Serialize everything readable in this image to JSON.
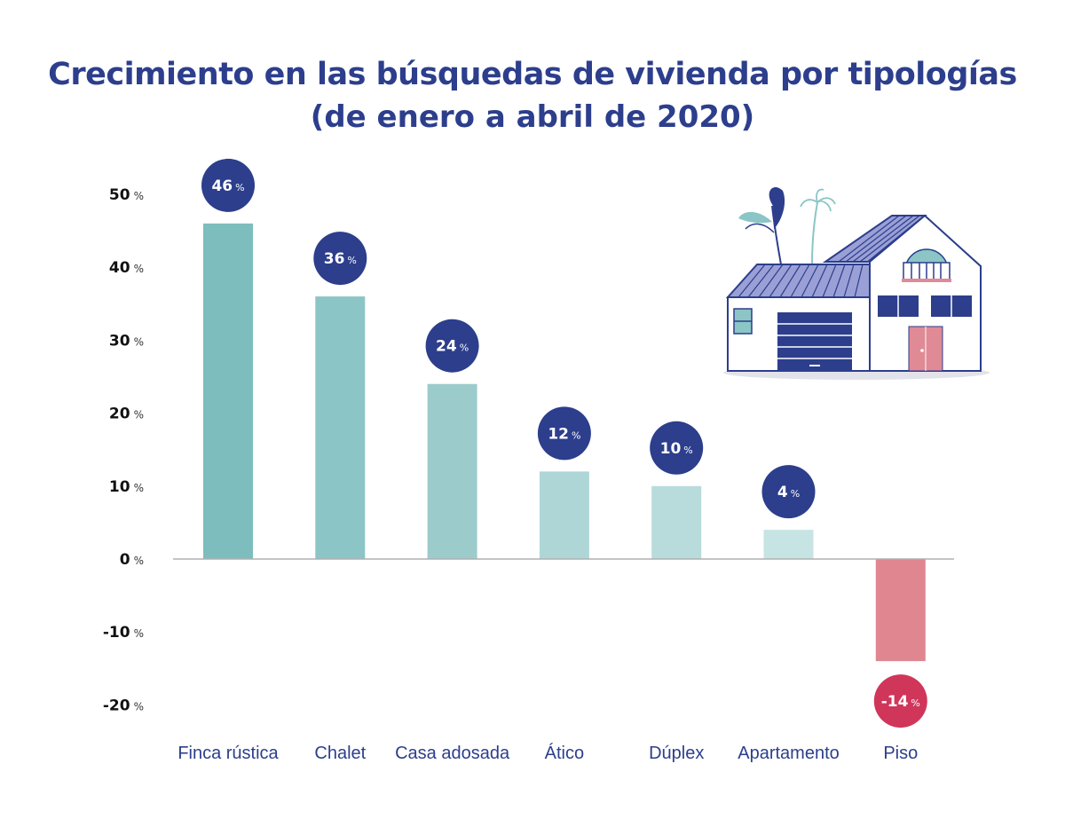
{
  "chart_data": {
    "type": "bar",
    "title": "Crecimiento en las búsquedas de vivienda por tipologías",
    "subtitle": "(de enero a abril de 2020)",
    "categories": [
      "Finca rústica",
      "Chalet",
      "Casa adosada",
      "Ático",
      "Dúplex",
      "Apartamento",
      "Piso"
    ],
    "values": [
      46,
      36,
      24,
      12,
      10,
      4,
      -14
    ],
    "value_labels": [
      "46",
      "36",
      "24",
      "12",
      "10",
      "4",
      "-14"
    ],
    "value_unit": "%",
    "ylim": [
      -20,
      50
    ],
    "yticks": [
      50,
      40,
      30,
      20,
      10,
      0,
      -10,
      -20
    ],
    "ytick_labels": [
      "50",
      "40",
      "30",
      "20",
      "10",
      "0",
      "-10",
      "-20"
    ],
    "ytick_unit": "%",
    "grid": false,
    "legend": "none",
    "colors": {
      "bars": [
        "#7dbdbd",
        "#8cc5c6",
        "#9ccbcc",
        "#aed6d7",
        "#b8dcdc",
        "#c6e4e3",
        "#df8690"
      ],
      "label_positive": "#2c3e8c",
      "label_negative": "#d0365a",
      "axis": "#b0b0b0",
      "text": "#2c3e8c"
    }
  },
  "illustration": {
    "icon": "house-illustration-icon"
  }
}
